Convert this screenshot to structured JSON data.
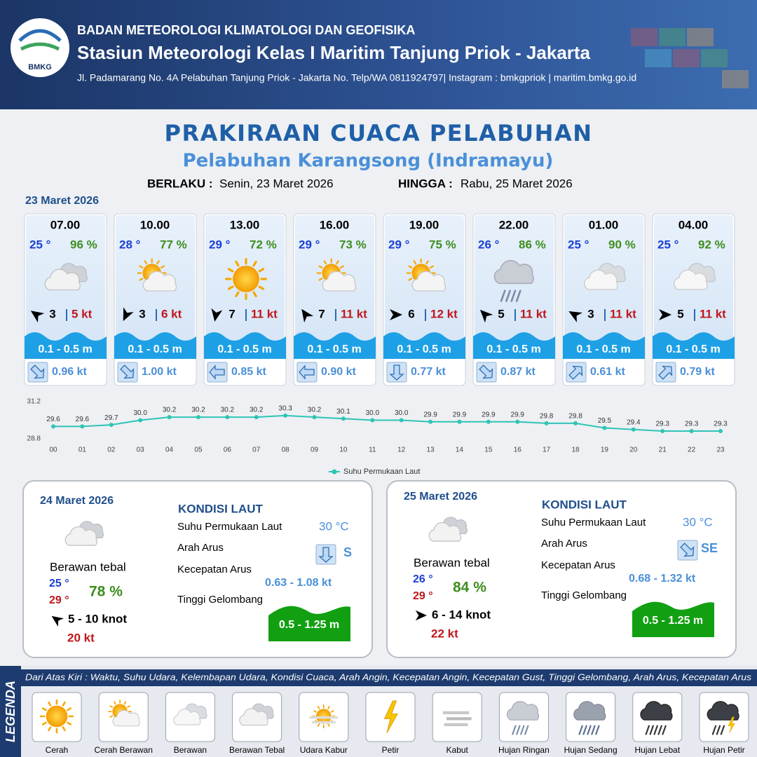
{
  "header": {
    "logo_text": "BMKG",
    "organization": "BADAN METEOROLOGI KLIMATOLOGI DAN GEOFISIKA",
    "station": "Stasiun Meteorologi Kelas I Maritim Tanjung Priok - Jakarta",
    "address": "Jl. Padamarang No. 4A Pelabuhan Tanjung Priok - Jakarta No. Telp/WA 0811924797| Instagram : bmkgpriok | maritim.bmkg.go.id"
  },
  "title": "PRAKIRAAN CUACA PELABUHAN",
  "subtitle": "Pelabuhan Karangsong (Indramayu)",
  "validity": {
    "from_label": "BERLAKU :",
    "from": "Senin, 23 Maret 2026",
    "to_label": "HINGGA :",
    "to": "Rabu, 25 Maret 2026"
  },
  "day1": {
    "date": "23 Maret 2026",
    "forecasts": [
      {
        "time": "07.00",
        "temp": "25 °",
        "humidity": "96 %",
        "wind_speed": "3",
        "gust": "5 kt",
        "wave": "0.1 - 0.5 m",
        "current": "0.96 kt"
      },
      {
        "time": "10.00",
        "temp": "28 °",
        "humidity": "77 %",
        "wind_speed": "3",
        "gust": "6 kt",
        "wave": "0.1 - 0.5 m",
        "current": "1.00 kt"
      },
      {
        "time": "13.00",
        "temp": "29 °",
        "humidity": "72 %",
        "wind_speed": "7",
        "gust": "11 kt",
        "wave": "0.1 - 0.5 m",
        "current": "0.85 kt"
      },
      {
        "time": "16.00",
        "temp": "29 °",
        "humidity": "73 %",
        "wind_speed": "7",
        "gust": "11 kt",
        "wave": "0.1 - 0.5 m",
        "current": "0.90 kt"
      },
      {
        "time": "19.00",
        "temp": "29 °",
        "humidity": "75 %",
        "wind_speed": "6",
        "gust": "12 kt",
        "wave": "0.1 - 0.5 m",
        "current": "0.77 kt"
      },
      {
        "time": "22.00",
        "temp": "26 °",
        "humidity": "86 %",
        "wind_speed": "5",
        "gust": "11 kt",
        "wave": "0.1 - 0.5 m",
        "current": "0.87 kt"
      },
      {
        "time": "01.00",
        "temp": "25 °",
        "humidity": "90 %",
        "wind_speed": "3",
        "gust": "11 kt",
        "wave": "0.1 - 0.5 m",
        "current": "0.61 kt"
      },
      {
        "time": "04.00",
        "temp": "25 °",
        "humidity": "92 %",
        "wind_speed": "5",
        "gust": "11 kt",
        "wave": "0.1 - 0.5 m",
        "current": "0.79 kt"
      }
    ]
  },
  "chart_data": {
    "type": "line",
    "categories": [
      "00",
      "01",
      "02",
      "03",
      "04",
      "05",
      "06",
      "07",
      "08",
      "09",
      "10",
      "11",
      "12",
      "13",
      "14",
      "15",
      "16",
      "17",
      "18",
      "19",
      "20",
      "21",
      "22",
      "23"
    ],
    "series": [
      {
        "name": "Suhu Permukaan Laut",
        "color": "#2ec4b6",
        "values": [
          29.6,
          29.6,
          29.7,
          30.0,
          30.2,
          30.2,
          30.2,
          30.2,
          30.3,
          30.2,
          30.1,
          30.0,
          30.0,
          29.9,
          29.9,
          29.9,
          29.9,
          29.8,
          29.8,
          29.5,
          29.4,
          29.3,
          29.3,
          29.3
        ],
        "value_labels": [
          "29.6",
          "29.6",
          "29.7",
          "30.0",
          "30.2",
          "30.2",
          "30.2",
          "30.2",
          "30.3",
          "30.2",
          "30.1",
          "30.0",
          "30.0",
          "29.9",
          "29.9",
          "29.9",
          "29.9",
          "29.8",
          "29.8",
          "29.5",
          "29.4",
          "29.3",
          "29.3",
          "29.3"
        ]
      }
    ],
    "ylim": [
      28.8,
      31.2
    ],
    "yticks": [
      28.8,
      31.2
    ],
    "grid": false,
    "legend": "bottom"
  },
  "days": [
    {
      "date": "24 Maret 2026",
      "condition": "Berawan tebal",
      "temp_min": "25 °",
      "temp_max": "29 °",
      "humidity": "78 %",
      "wind": "5  - 10 knot",
      "gust": "20 kt",
      "sea_title": "KONDISI LAUT",
      "sst_label": "Suhu Permukaan Laut",
      "sst": "30 °C",
      "current_dir_label": "Arah Arus",
      "current_dir": "S",
      "current_speed_label": "Kecepatan Arus",
      "current_speed": "0.63  - 1.08 kt",
      "wave_label": "Tinggi Gelombang",
      "wave": "0.5 - 1.25 m"
    },
    {
      "date": "25 Maret 2026",
      "condition": "Berawan tebal",
      "temp_min": "26 °",
      "temp_max": "29 °",
      "humidity": "84 %",
      "wind": "6  - 14 knot",
      "gust": "22 kt",
      "sea_title": "KONDISI LAUT",
      "sst_label": "Suhu Permukaan Laut",
      "sst": "30 °C",
      "current_dir_label": "Arah Arus",
      "current_dir": "SE",
      "current_speed_label": "Kecepatan Arus",
      "current_speed": "0.68 - 1.32 kt",
      "wave_label": "Tinggi Gelombang",
      "wave": "0.5 - 1.25 m"
    }
  ],
  "legend": {
    "title": "LEGENDA",
    "description": "Dari Atas Kiri : Waktu, Suhu Udara, Kelembapan Udara, Kondisi Cuaca, Arah Angin, Kecepatan Angin, Kecepatan Gust, Tinggi Gelombang, Arah Arus, Kecepatan Arus",
    "items": [
      "Cerah",
      "Cerah Berawan",
      "Berawan",
      "Berawan Tebal",
      "Udara Kabur",
      "Petir",
      "Kabut",
      "Hujan Ringan",
      "Hujan Sedang",
      "Hujan Lebat",
      "Hujan Petir"
    ]
  }
}
